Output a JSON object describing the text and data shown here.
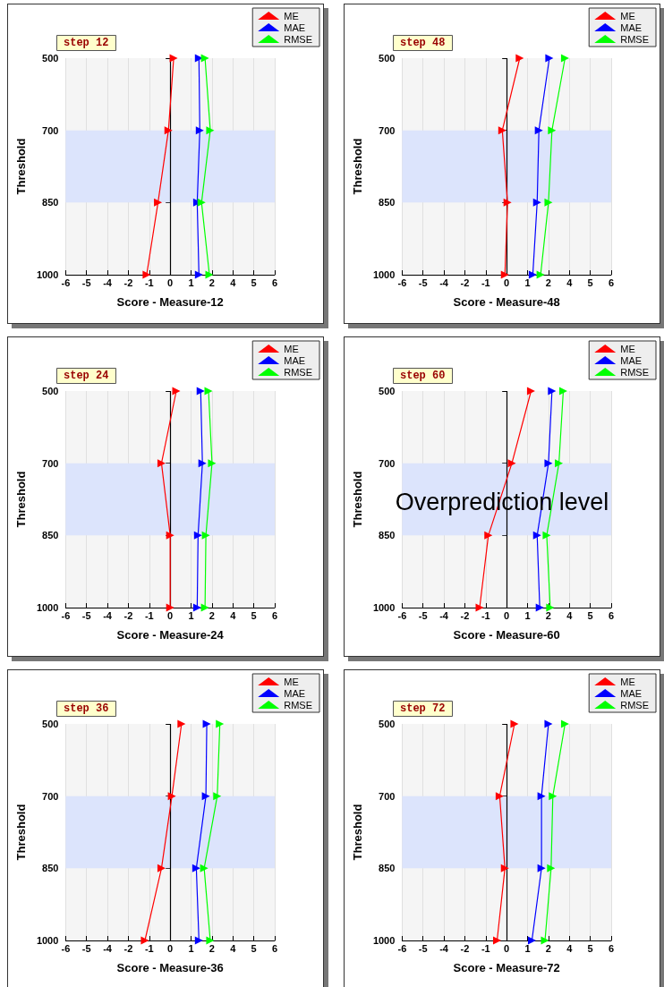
{
  "chart_data": [
    {
      "type": "line",
      "orientation": "horizontal",
      "title": "step 12",
      "xlabel": "Score - Measure-12",
      "ylabel": "Threshold",
      "categories": [
        "500",
        "700",
        "850",
        "1000"
      ],
      "series": [
        {
          "name": "ME",
          "color": "#ff0000",
          "values": [
            0.2,
            -0.1,
            -0.7,
            -1.35
          ]
        },
        {
          "name": "MAE",
          "color": "#0000ff",
          "values": [
            1.65,
            1.7,
            1.55,
            1.65
          ]
        },
        {
          "name": "RMSE",
          "color": "#00ff00",
          "values": [
            2.0,
            2.3,
            1.8,
            2.25
          ]
        }
      ],
      "xlim": [
        -6,
        6
      ],
      "xticks": [
        -6,
        {
          "value": -4.8,
          "label": "-5"
        },
        {
          "value": -3.6,
          "label": "-4"
        },
        {
          "value": -2.4,
          "label": "-2"
        },
        {
          "value": -1.2,
          "label": "-1"
        },
        0,
        {
          "value": 1.2,
          "label": "1"
        },
        {
          "value": 2.4,
          "label": "2"
        },
        {
          "value": 3.6,
          "label": "4"
        },
        {
          "value": 4.8,
          "label": "5"
        },
        6
      ],
      "grid": "x",
      "legend": "top right",
      "marker": "triangle",
      "bands": [
        {
          "axis": "y",
          "from": "700",
          "to": "850",
          "color": "#dce4fc"
        }
      ],
      "ref_lines": [
        {
          "axis": "x",
          "value": 0,
          "color": "#000000"
        }
      ]
    },
    {
      "type": "line",
      "orientation": "horizontal",
      "title": "step 48",
      "xlabel": "Score - Measure-48",
      "ylabel": "Threshold",
      "categories": [
        "500",
        "700",
        "850",
        "1000"
      ],
      "series": [
        {
          "name": "ME",
          "color": "#ff0000",
          "values": [
            0.75,
            -0.25,
            0.05,
            -0.1
          ]
        },
        {
          "name": "MAE",
          "color": "#0000ff",
          "values": [
            2.45,
            1.85,
            1.75,
            1.5
          ]
        },
        {
          "name": "RMSE",
          "color": "#00ff00",
          "values": [
            3.35,
            2.6,
            2.4,
            1.95
          ]
        }
      ],
      "xlim": [
        -6,
        6
      ],
      "xticks": [
        -6,
        {
          "value": -4.8,
          "label": "-5"
        },
        {
          "value": -3.6,
          "label": "-4"
        },
        {
          "value": -2.4,
          "label": "-2"
        },
        {
          "value": -1.2,
          "label": "-1"
        },
        0,
        {
          "value": 1.2,
          "label": "1"
        },
        {
          "value": 2.4,
          "label": "2"
        },
        {
          "value": 3.6,
          "label": "4"
        },
        {
          "value": 4.8,
          "label": "5"
        },
        6
      ],
      "grid": "x",
      "legend": "top right",
      "marker": "triangle",
      "bands": [
        {
          "axis": "y",
          "from": "700",
          "to": "850",
          "color": "#dce4fc"
        }
      ],
      "ref_lines": [
        {
          "axis": "x",
          "value": 0,
          "color": "#000000"
        }
      ]
    },
    {
      "type": "line",
      "orientation": "horizontal",
      "title": "step 24",
      "xlabel": "Score - Measure-24",
      "ylabel": "Threshold",
      "categories": [
        "500",
        "700",
        "850",
        "1000"
      ],
      "series": [
        {
          "name": "ME",
          "color": "#ff0000",
          "values": [
            0.35,
            -0.5,
            0,
            0
          ]
        },
        {
          "name": "MAE",
          "color": "#0000ff",
          "values": [
            1.75,
            1.85,
            1.6,
            1.55
          ]
        },
        {
          "name": "RMSE",
          "color": "#00ff00",
          "values": [
            2.2,
            2.4,
            2.05,
            2.0
          ]
        }
      ],
      "xlim": [
        -6,
        6
      ],
      "xticks": [
        -6,
        {
          "value": -4.8,
          "label": "-5"
        },
        {
          "value": -3.6,
          "label": "-4"
        },
        {
          "value": -2.4,
          "label": "-2"
        },
        {
          "value": -1.2,
          "label": "-1"
        },
        0,
        {
          "value": 1.2,
          "label": "1"
        },
        {
          "value": 2.4,
          "label": "2"
        },
        {
          "value": 3.6,
          "label": "4"
        },
        {
          "value": 4.8,
          "label": "5"
        },
        6
      ],
      "grid": "x",
      "legend": "top right",
      "marker": "triangle",
      "bands": [
        {
          "axis": "y",
          "from": "700",
          "to": "850",
          "color": "#dce4fc"
        }
      ],
      "ref_lines": [
        {
          "axis": "x",
          "value": 0,
          "color": "#000000"
        }
      ]
    },
    {
      "type": "line",
      "orientation": "horizontal",
      "title": "step 60",
      "xlabel": "Score - Measure-60",
      "ylabel": "Threshold",
      "categories": [
        "500",
        "700",
        "850",
        "1000"
      ],
      "series": [
        {
          "name": "ME",
          "color": "#ff0000",
          "values": [
            1.4,
            0.3,
            -1.05,
            -1.55
          ]
        },
        {
          "name": "MAE",
          "color": "#0000ff",
          "values": [
            2.6,
            2.4,
            1.75,
            1.9
          ]
        },
        {
          "name": "RMSE",
          "color": "#00ff00",
          "values": [
            3.25,
            3.0,
            2.3,
            2.5
          ]
        }
      ],
      "xlim": [
        -6,
        6
      ],
      "xticks": [
        -6,
        {
          "value": -4.8,
          "label": "-5"
        },
        {
          "value": -3.6,
          "label": "-4"
        },
        {
          "value": -2.4,
          "label": "-2"
        },
        {
          "value": -1.2,
          "label": "-1"
        },
        0,
        {
          "value": 1.2,
          "label": "1"
        },
        {
          "value": 2.4,
          "label": "2"
        },
        {
          "value": 3.6,
          "label": "4"
        },
        {
          "value": 4.8,
          "label": "5"
        },
        6
      ],
      "grid": "x",
      "legend": "top right",
      "marker": "triangle",
      "bands": [
        {
          "axis": "y",
          "from": "700",
          "to": "850",
          "color": "#dce4fc"
        }
      ],
      "ref_lines": [
        {
          "axis": "x",
          "value": 0,
          "color": "#000000"
        }
      ],
      "annotations": [
        "Overprediction level"
      ]
    },
    {
      "type": "line",
      "orientation": "horizontal",
      "title": "step 36",
      "xlabel": "Score - Measure-36",
      "ylabel": "Threshold",
      "categories": [
        "500",
        "700",
        "850",
        "1000"
      ],
      "series": [
        {
          "name": "ME",
          "color": "#ff0000",
          "values": [
            0.65,
            0.1,
            -0.5,
            -1.45
          ]
        },
        {
          "name": "MAE",
          "color": "#0000ff",
          "values": [
            2.1,
            2.05,
            1.5,
            1.65
          ]
        },
        {
          "name": "RMSE",
          "color": "#00ff00",
          "values": [
            2.85,
            2.7,
            1.95,
            2.3
          ]
        }
      ],
      "xlim": [
        -6,
        6
      ],
      "xticks": [
        -6,
        {
          "value": -4.8,
          "label": "-5"
        },
        {
          "value": -3.6,
          "label": "-4"
        },
        {
          "value": -2.4,
          "label": "-2"
        },
        {
          "value": -1.2,
          "label": "-1"
        },
        0,
        {
          "value": 1.2,
          "label": "1"
        },
        {
          "value": 2.4,
          "label": "2"
        },
        {
          "value": 3.6,
          "label": "4"
        },
        {
          "value": 4.8,
          "label": "5"
        },
        6
      ],
      "grid": "x",
      "legend": "top right",
      "marker": "triangle",
      "bands": [
        {
          "axis": "y",
          "from": "700",
          "to": "850",
          "color": "#dce4fc"
        }
      ],
      "ref_lines": [
        {
          "axis": "x",
          "value": 0,
          "color": "#000000"
        }
      ]
    },
    {
      "type": "line",
      "orientation": "horizontal",
      "title": "step 72",
      "xlabel": "Score - Measure-72",
      "ylabel": "Threshold",
      "categories": [
        "500",
        "700",
        "850",
        "1000"
      ],
      "series": [
        {
          "name": "ME",
          "color": "#ff0000",
          "values": [
            0.45,
            -0.4,
            -0.1,
            -0.55
          ]
        },
        {
          "name": "MAE",
          "color": "#0000ff",
          "values": [
            2.4,
            2.0,
            2.0,
            1.45
          ]
        },
        {
          "name": "RMSE",
          "color": "#00ff00",
          "values": [
            3.35,
            2.65,
            2.55,
            2.2
          ]
        }
      ],
      "xlim": [
        -6,
        6
      ],
      "xticks": [
        -6,
        {
          "value": -4.8,
          "label": "-5"
        },
        {
          "value": -3.6,
          "label": "-4"
        },
        {
          "value": -2.4,
          "label": "-2"
        },
        {
          "value": -1.2,
          "label": "-1"
        },
        0,
        {
          "value": 1.2,
          "label": "1"
        },
        {
          "value": 2.4,
          "label": "2"
        },
        {
          "value": 3.6,
          "label": "4"
        },
        {
          "value": 4.8,
          "label": "5"
        },
        6
      ],
      "grid": "x",
      "legend": "top right",
      "marker": "triangle",
      "bands": [
        {
          "axis": "y",
          "from": "700",
          "to": "850",
          "color": "#dce4fc"
        }
      ],
      "ref_lines": [
        {
          "axis": "x",
          "value": 0,
          "color": "#000000"
        }
      ]
    }
  ]
}
